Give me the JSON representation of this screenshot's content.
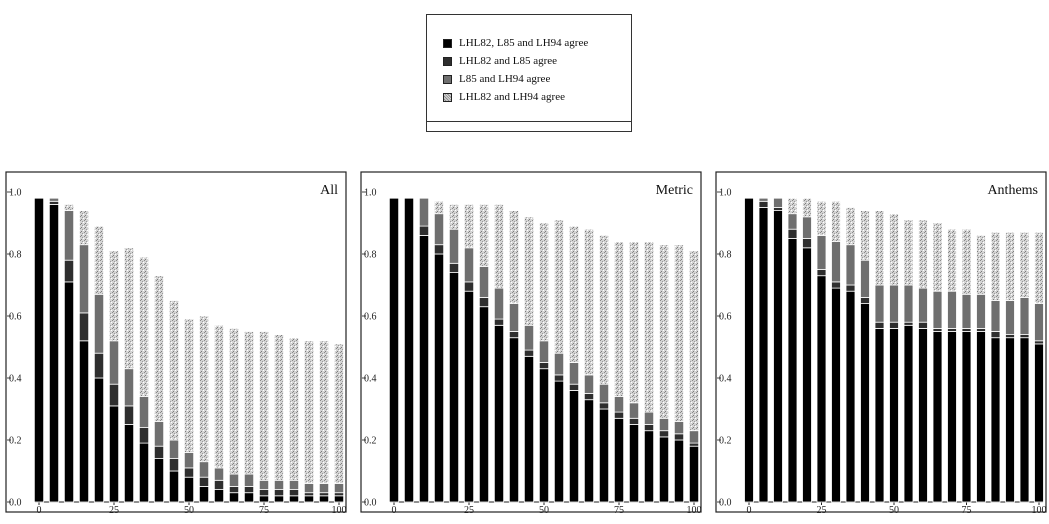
{
  "legend": {
    "items": [
      {
        "label": "LHL82, L85 and LH94 agree",
        "color": "#000000"
      },
      {
        "label": "LHL82 and L85 agree",
        "color": "#2e2e2e"
      },
      {
        "label": "L85 and LH94 agree",
        "color": "#6f6f6f"
      },
      {
        "label": "LHL82 and LH94 agree",
        "color": "#c6c6c6"
      }
    ]
  },
  "chart_data": [
    {
      "type": "bar",
      "stacked": true,
      "title": "All",
      "x": [
        0,
        5,
        10,
        15,
        20,
        25,
        30,
        35,
        40,
        45,
        50,
        55,
        60,
        65,
        70,
        75,
        80,
        85,
        90,
        95,
        100
      ],
      "xticks": [
        "0",
        "25",
        "50",
        "75",
        "100"
      ],
      "yticks": [
        "0.0",
        "0.2",
        "0.4",
        "0.6",
        "0.8",
        "1.0"
      ],
      "ylim": [
        0,
        1.0
      ],
      "series": [
        {
          "name": "LHL82, L85 and LH94 agree",
          "values": [
            0.98,
            0.96,
            0.71,
            0.52,
            0.4,
            0.31,
            0.25,
            0.19,
            0.14,
            0.1,
            0.08,
            0.05,
            0.04,
            0.03,
            0.03,
            0.02,
            0.02,
            0.02,
            0.02,
            0.02,
            0.02
          ]
        },
        {
          "name": "LHL82 and L85 agree",
          "values": [
            0.0,
            0.01,
            0.07,
            0.09,
            0.08,
            0.07,
            0.06,
            0.05,
            0.04,
            0.04,
            0.03,
            0.03,
            0.03,
            0.02,
            0.02,
            0.02,
            0.02,
            0.02,
            0.01,
            0.01,
            0.01
          ]
        },
        {
          "name": "L85 and LH94 agree",
          "values": [
            0.0,
            0.01,
            0.16,
            0.22,
            0.19,
            0.14,
            0.12,
            0.1,
            0.08,
            0.06,
            0.05,
            0.05,
            0.04,
            0.04,
            0.04,
            0.03,
            0.03,
            0.03,
            0.03,
            0.03,
            0.03
          ]
        },
        {
          "name": "LHL82 and LH94 agree",
          "values": [
            0.0,
            0.0,
            0.02,
            0.11,
            0.22,
            0.29,
            0.39,
            0.45,
            0.47,
            0.45,
            0.43,
            0.47,
            0.46,
            0.47,
            0.46,
            0.48,
            0.47,
            0.46,
            0.46,
            0.46,
            0.45
          ]
        }
      ]
    },
    {
      "type": "bar",
      "stacked": true,
      "title": "Metric",
      "x": [
        0,
        5,
        10,
        15,
        20,
        25,
        30,
        35,
        40,
        45,
        50,
        55,
        60,
        65,
        70,
        75,
        80,
        85,
        90,
        95,
        100
      ],
      "xticks": [
        "0",
        "25",
        "50",
        "75",
        "100"
      ],
      "yticks": [
        "0.0",
        "0.2",
        "0.4",
        "0.6",
        "0.8",
        "1.0"
      ],
      "ylim": [
        0,
        1.0
      ],
      "series": [
        {
          "name": "LHL82, L85 and LH94 agree",
          "values": [
            0.98,
            0.98,
            0.86,
            0.8,
            0.74,
            0.68,
            0.63,
            0.57,
            0.53,
            0.47,
            0.43,
            0.39,
            0.36,
            0.33,
            0.3,
            0.27,
            0.25,
            0.23,
            0.21,
            0.2,
            0.18
          ]
        },
        {
          "name": "LHL82 and L85 agree",
          "values": [
            0.0,
            0.0,
            0.03,
            0.03,
            0.03,
            0.03,
            0.03,
            0.02,
            0.02,
            0.02,
            0.02,
            0.02,
            0.02,
            0.02,
            0.02,
            0.02,
            0.02,
            0.02,
            0.02,
            0.02,
            0.01
          ]
        },
        {
          "name": "L85 and LH94 agree",
          "values": [
            0.0,
            0.0,
            0.09,
            0.1,
            0.11,
            0.11,
            0.1,
            0.1,
            0.09,
            0.08,
            0.07,
            0.07,
            0.07,
            0.06,
            0.06,
            0.05,
            0.05,
            0.04,
            0.04,
            0.04,
            0.04
          ]
        },
        {
          "name": "LHL82 and LH94 agree",
          "values": [
            0.0,
            0.0,
            0.0,
            0.04,
            0.08,
            0.14,
            0.2,
            0.27,
            0.3,
            0.35,
            0.38,
            0.43,
            0.44,
            0.47,
            0.48,
            0.5,
            0.52,
            0.55,
            0.56,
            0.57,
            0.58
          ]
        }
      ]
    },
    {
      "type": "bar",
      "stacked": true,
      "title": "Anthems",
      "x": [
        0,
        5,
        10,
        15,
        20,
        25,
        30,
        35,
        40,
        45,
        50,
        55,
        60,
        65,
        70,
        75,
        80,
        85,
        90,
        95,
        100
      ],
      "xticks": [
        "0",
        "25",
        "50",
        "75",
        "100"
      ],
      "yticks": [
        "0.0",
        "0.2",
        "0.4",
        "0.6",
        "0.8",
        "1.0"
      ],
      "ylim": [
        0,
        1.0
      ],
      "series": [
        {
          "name": "LHL82, L85 and LH94 agree",
          "values": [
            0.98,
            0.95,
            0.94,
            0.85,
            0.82,
            0.73,
            0.69,
            0.68,
            0.64,
            0.56,
            0.56,
            0.57,
            0.56,
            0.55,
            0.55,
            0.55,
            0.55,
            0.53,
            0.53,
            0.53,
            0.51
          ]
        },
        {
          "name": "LHL82 and L85 agree",
          "values": [
            0.0,
            0.02,
            0.01,
            0.03,
            0.03,
            0.02,
            0.02,
            0.02,
            0.02,
            0.02,
            0.02,
            0.01,
            0.02,
            0.01,
            0.01,
            0.01,
            0.01,
            0.02,
            0.01,
            0.01,
            0.01
          ]
        },
        {
          "name": "L85 and LH94 agree",
          "values": [
            0.0,
            0.01,
            0.03,
            0.05,
            0.07,
            0.11,
            0.13,
            0.13,
            0.12,
            0.12,
            0.12,
            0.12,
            0.11,
            0.12,
            0.12,
            0.11,
            0.11,
            0.1,
            0.11,
            0.12,
            0.12
          ]
        },
        {
          "name": "LHL82 and LH94 agree",
          "values": [
            0.0,
            0.0,
            0.0,
            0.05,
            0.06,
            0.11,
            0.13,
            0.12,
            0.16,
            0.24,
            0.23,
            0.21,
            0.22,
            0.22,
            0.2,
            0.21,
            0.19,
            0.22,
            0.22,
            0.21,
            0.23
          ]
        }
      ]
    }
  ]
}
